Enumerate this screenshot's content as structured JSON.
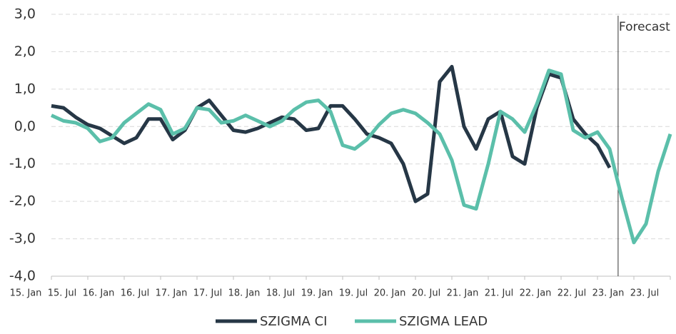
{
  "chart_data": {
    "type": "line",
    "annotations": [
      "Forecast"
    ],
    "categories": [
      "15. Jan",
      null,
      null,
      "15. Jul",
      null,
      null,
      "16. Jan",
      null,
      null,
      "16. Jul",
      null,
      null,
      "17. Jan",
      null,
      null,
      "17. Jul",
      null,
      null,
      "18. Jan",
      null,
      null,
      "18. Jul",
      null,
      null,
      "19. Jan",
      null,
      null,
      "19. Jul",
      null,
      null,
      "20. Jan",
      null,
      null,
      "20. Jul",
      null,
      null,
      "21. Jan",
      null,
      null,
      "21. Jul",
      null,
      null,
      "22. Jan",
      null,
      null,
      "22. Jul",
      null,
      null,
      "23. Jan",
      null,
      null,
      "23. Jul"
    ],
    "series": [
      {
        "name": "SZIGMA CI",
        "color": "#263746",
        "values": [
          0.55,
          0.5,
          0.25,
          0.05,
          -0.05,
          -0.25,
          -0.45,
          -0.3,
          0.2,
          0.2,
          -0.35,
          -0.1,
          0.5,
          0.7,
          0.3,
          -0.1,
          -0.15,
          -0.05,
          0.1,
          0.25,
          0.2,
          -0.1,
          -0.05,
          0.55,
          0.55,
          0.2,
          -0.2,
          -0.3,
          -0.45,
          -1.0,
          -2.0,
          -1.8,
          1.2,
          1.6,
          0.0,
          -0.6,
          0.2,
          0.4,
          -0.8,
          -1.0,
          0.5,
          1.4,
          1.3,
          0.2,
          -0.2,
          -0.5,
          -1.1,
          null,
          null,
          null,
          null,
          null
        ]
      },
      {
        "name": "SZIGMA LEAD",
        "color": "#5bbfaa",
        "values": [
          0.3,
          0.15,
          0.1,
          -0.05,
          -0.4,
          -0.3,
          0.1,
          0.35,
          0.6,
          0.45,
          -0.2,
          -0.05,
          0.5,
          0.45,
          0.1,
          0.15,
          0.3,
          0.15,
          0.0,
          0.15,
          0.45,
          0.65,
          0.7,
          0.4,
          -0.5,
          -0.6,
          -0.35,
          0.05,
          0.35,
          0.45,
          0.35,
          0.1,
          -0.2,
          -0.9,
          -2.1,
          -2.2,
          -1.0,
          0.4,
          0.2,
          -0.15,
          0.6,
          1.5,
          1.4,
          -0.1,
          -0.3,
          -0.15,
          -0.6,
          -1.9,
          -3.1,
          -2.6,
          -1.2,
          -0.2
        ]
      }
    ],
    "ylim": [
      -4,
      3
    ],
    "yticks": [
      {
        "value": -4,
        "label": "-4,0"
      },
      {
        "value": -3,
        "label": "-3,0"
      },
      {
        "value": -2,
        "label": "-2,0"
      },
      {
        "value": -1,
        "label": "-1,0"
      },
      {
        "value": 0,
        "label": "0,0"
      },
      {
        "value": 1,
        "label": "1,0"
      },
      {
        "value": 2,
        "label": "2,0"
      },
      {
        "value": 3,
        "label": "3,0"
      }
    ],
    "grid": true,
    "legend": "bottom"
  }
}
